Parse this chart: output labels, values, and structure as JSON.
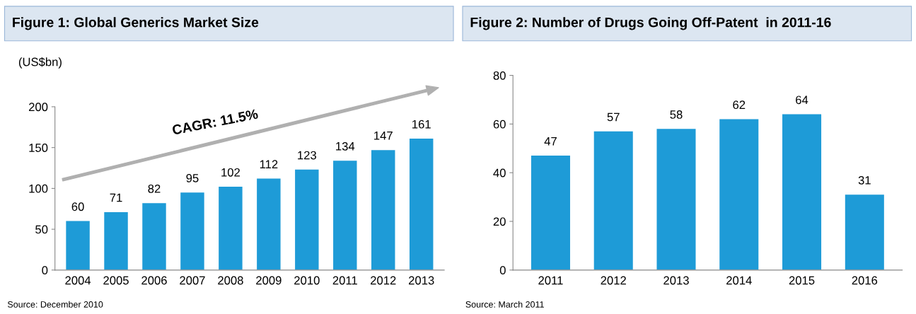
{
  "chart_data": [
    {
      "type": "bar",
      "title": "Figure 1: Global Generics Market Size",
      "ylabel": "(US$bn)",
      "categories": [
        "2004",
        "2005",
        "2006",
        "2007",
        "2008",
        "2009",
        "2010",
        "2011",
        "2012",
        "2013"
      ],
      "values": [
        60,
        71,
        82,
        95,
        102,
        112,
        123,
        134,
        147,
        161
      ],
      "color": "#1e9bd7",
      "ylim": [
        0,
        200
      ],
      "yticks": [
        0,
        50,
        100,
        150,
        200
      ],
      "data_labels": true,
      "grid": false,
      "legend": false,
      "annotations": [
        "CAGR: 11.5%",
        "Source: December 2010"
      ]
    },
    {
      "type": "bar",
      "title": "Figure 2: Number of Drugs Going Off-Patent  in 2011-16",
      "categories": [
        "2011",
        "2012",
        "2013",
        "2014",
        "2015",
        "2016"
      ],
      "values": [
        47,
        57,
        58,
        62,
        64,
        31
      ],
      "color": "#1e9bd7",
      "ylim": [
        0,
        80
      ],
      "yticks": [
        0,
        20,
        40,
        60,
        80
      ],
      "data_labels": true,
      "grid": false,
      "legend": false,
      "annotations": [
        "Source: March 2011"
      ]
    }
  ]
}
